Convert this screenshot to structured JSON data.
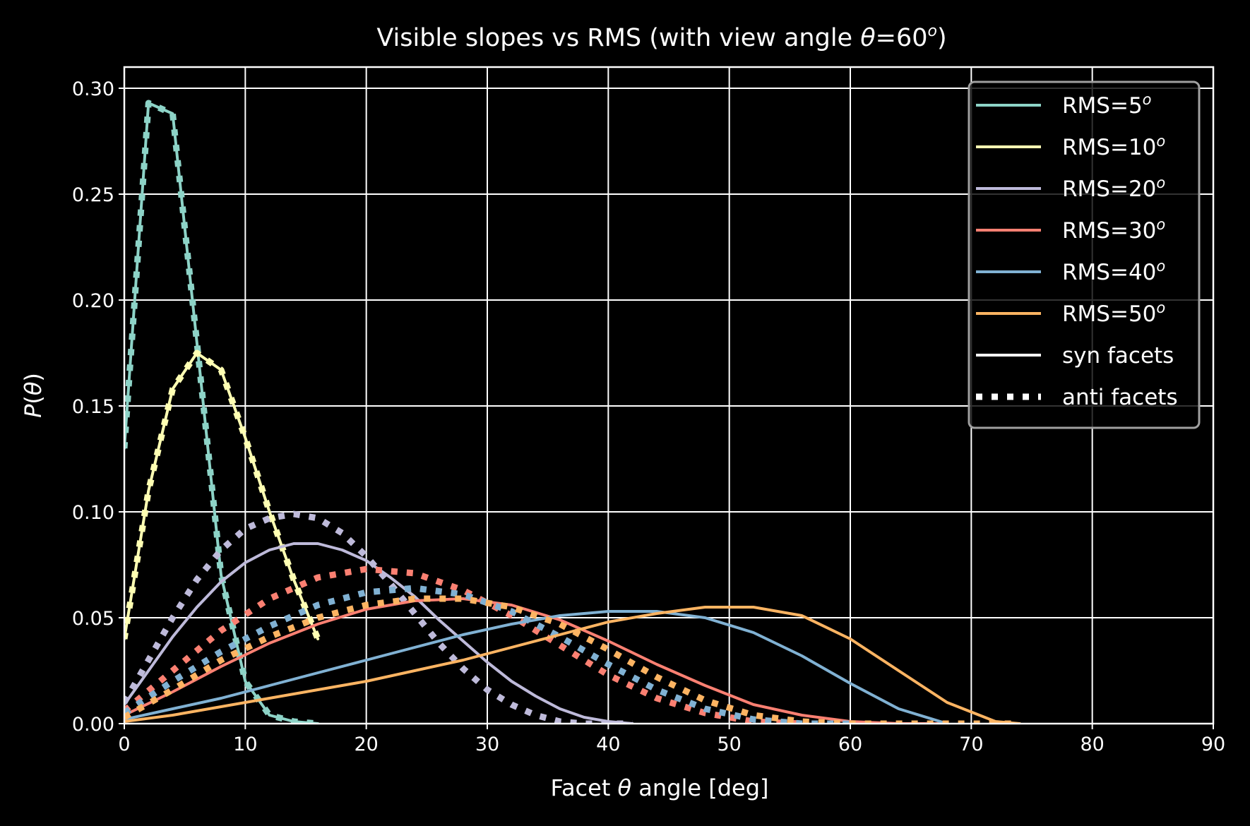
{
  "chart_data": {
    "type": "line",
    "title_parts": [
      "Visible slopes vs RMS (with view angle ",
      "θ",
      "=60",
      "o",
      ")"
    ],
    "xlabel_parts": [
      "Facet ",
      "θ",
      " angle [deg]"
    ],
    "ylabel_parts": [
      "P(",
      "θ",
      ")"
    ],
    "xlim": [
      0,
      90
    ],
    "ylim": [
      0,
      0.31
    ],
    "xticks": [
      "0",
      "10",
      "20",
      "30",
      "40",
      "50",
      "60",
      "70",
      "80",
      "90"
    ],
    "yticks": [
      "0.00",
      "0.05",
      "0.10",
      "0.15",
      "0.20",
      "0.25",
      "0.30"
    ],
    "grid": true,
    "legend_placement": "top-right",
    "background": "#000000",
    "series": [
      {
        "label": "RMS=5",
        "label_sup": "o",
        "color": "#8dd3c7",
        "syn": {
          "x": [
            0,
            2,
            4,
            6,
            8,
            10,
            12,
            14,
            16
          ],
          "y": [
            0.13,
            0.293,
            0.288,
            0.18,
            0.07,
            0.02,
            0.004,
            0.001,
            0.0
          ]
        },
        "anti": {
          "x": [
            0,
            2,
            4,
            6,
            8,
            10,
            12,
            14,
            16
          ],
          "y": [
            0.13,
            0.293,
            0.288,
            0.18,
            0.07,
            0.02,
            0.004,
            0.001,
            0.0
          ]
        }
      },
      {
        "label": "RMS=10",
        "label_sup": "o",
        "color": "#ffffb3",
        "syn": {
          "x": [
            0,
            2,
            4,
            6,
            8,
            10,
            12,
            14,
            16
          ],
          "y": [
            0.04,
            0.11,
            0.158,
            0.175,
            0.167,
            0.135,
            0.1,
            0.068,
            0.04
          ]
        },
        "anti": {
          "x": [
            0,
            2,
            4,
            6,
            8,
            10,
            12,
            14,
            16
          ],
          "y": [
            0.04,
            0.11,
            0.158,
            0.175,
            0.167,
            0.135,
            0.1,
            0.068,
            0.04
          ]
        }
      },
      {
        "label": "RMS=20",
        "label_sup": "o",
        "color": "#bebada",
        "syn": {
          "x": [
            0,
            2,
            4,
            6,
            8,
            10,
            12,
            14,
            16,
            18,
            20,
            22,
            24,
            26,
            28,
            30,
            32,
            34,
            36,
            38,
            40,
            42
          ],
          "y": [
            0.009,
            0.025,
            0.041,
            0.055,
            0.067,
            0.076,
            0.082,
            0.085,
            0.085,
            0.082,
            0.077,
            0.069,
            0.06,
            0.049,
            0.039,
            0.029,
            0.02,
            0.013,
            0.007,
            0.003,
            0.001,
            0.0
          ]
        },
        "anti": {
          "x": [
            0,
            2,
            4,
            6,
            8,
            10,
            12,
            14,
            16,
            18,
            20,
            22,
            24,
            26,
            28,
            30,
            32,
            34,
            36,
            38,
            40,
            42
          ],
          "y": [
            0.01,
            0.03,
            0.05,
            0.068,
            0.082,
            0.092,
            0.097,
            0.099,
            0.097,
            0.09,
            0.079,
            0.066,
            0.052,
            0.038,
            0.026,
            0.016,
            0.009,
            0.004,
            0.001,
            0.0,
            0.0,
            0.0
          ]
        }
      },
      {
        "label": "RMS=30",
        "label_sup": "o",
        "color": "#fb8072",
        "syn": {
          "x": [
            0,
            4,
            8,
            12,
            16,
            20,
            24,
            28,
            32,
            36,
            40,
            44,
            48,
            52,
            56,
            60,
            64,
            68
          ],
          "y": [
            0.004,
            0.015,
            0.027,
            0.038,
            0.047,
            0.054,
            0.058,
            0.059,
            0.056,
            0.049,
            0.039,
            0.028,
            0.018,
            0.009,
            0.004,
            0.001,
            0.0,
            0.0
          ]
        },
        "anti": {
          "x": [
            0,
            4,
            8,
            12,
            16,
            20,
            24,
            28,
            32,
            36,
            40,
            44,
            48,
            52,
            56
          ],
          "y": [
            0.006,
            0.025,
            0.044,
            0.059,
            0.069,
            0.073,
            0.071,
            0.063,
            0.051,
            0.037,
            0.023,
            0.012,
            0.005,
            0.001,
            0.0
          ]
        }
      },
      {
        "label": "RMS=40",
        "label_sup": "o",
        "color": "#80b1d3",
        "syn": {
          "x": [
            0,
            4,
            8,
            12,
            16,
            20,
            24,
            28,
            32,
            36,
            40,
            44,
            48,
            52,
            56,
            60,
            64,
            68
          ],
          "y": [
            0.002,
            0.007,
            0.012,
            0.018,
            0.024,
            0.03,
            0.036,
            0.042,
            0.047,
            0.051,
            0.053,
            0.053,
            0.05,
            0.043,
            0.032,
            0.019,
            0.007,
            0.0
          ]
        },
        "anti": {
          "x": [
            0,
            4,
            8,
            12,
            16,
            20,
            24,
            28,
            32,
            36,
            40,
            44,
            48,
            52,
            56,
            60
          ],
          "y": [
            0.005,
            0.02,
            0.034,
            0.046,
            0.056,
            0.062,
            0.064,
            0.061,
            0.053,
            0.041,
            0.028,
            0.016,
            0.007,
            0.002,
            0.0,
            0.0
          ]
        }
      },
      {
        "label": "RMS=50",
        "label_sup": "o",
        "color": "#fdb462",
        "syn": {
          "x": [
            0,
            4,
            8,
            12,
            16,
            20,
            24,
            28,
            32,
            36,
            40,
            44,
            48,
            52,
            56,
            60,
            64,
            68,
            72,
            74
          ],
          "y": [
            0.001,
            0.004,
            0.008,
            0.012,
            0.016,
            0.02,
            0.025,
            0.03,
            0.036,
            0.042,
            0.048,
            0.052,
            0.055,
            0.055,
            0.051,
            0.04,
            0.025,
            0.01,
            0.001,
            0.0
          ]
        },
        "anti": {
          "x": [
            0,
            4,
            8,
            12,
            16,
            20,
            24,
            28,
            32,
            36,
            40,
            44,
            48,
            52,
            56,
            60,
            64,
            68,
            72,
            74
          ],
          "y": [
            0.003,
            0.016,
            0.03,
            0.041,
            0.05,
            0.056,
            0.059,
            0.059,
            0.055,
            0.047,
            0.035,
            0.022,
            0.011,
            0.004,
            0.001,
            0.0,
            0.0,
            0.0,
            0.0,
            0.0
          ]
        }
      }
    ],
    "legend_extra": [
      {
        "label": "syn facets",
        "style": "solid",
        "color": "#ffffff"
      },
      {
        "label": "anti facets",
        "style": "dotted",
        "color": "#ffffff"
      }
    ]
  }
}
